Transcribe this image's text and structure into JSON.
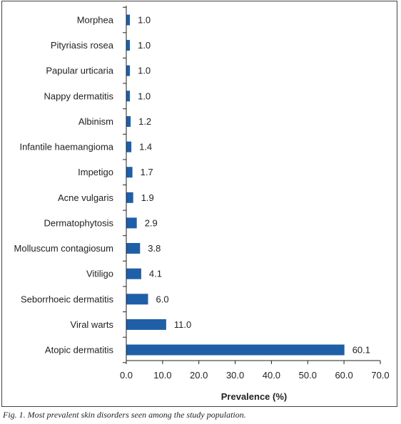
{
  "chart_data": {
    "type": "bar",
    "orientation": "horizontal",
    "categories": [
      "Morphea",
      "Pityriasis rosea",
      "Papular urticaria",
      "Nappy dermatitis",
      "Albinism",
      "Infantile haemangioma",
      "Impetigo",
      "Acne vulgaris",
      "Dermatophytosis",
      "Molluscum contagiosum",
      "Vitiligo",
      "Seborrhoeic dermatitis",
      "Viral warts",
      "Atopic dermatitis"
    ],
    "values": [
      1.0,
      1.0,
      1.0,
      1.0,
      1.2,
      1.4,
      1.7,
      1.9,
      2.9,
      3.8,
      4.1,
      6.0,
      11.0,
      60.1
    ],
    "value_labels": [
      "1.0",
      "1.0",
      "1.0",
      "1.0",
      "1.2",
      "1.4",
      "1.7",
      "1.9",
      "2.9",
      "3.8",
      "4.1",
      "6.0",
      "11.0",
      "60.1"
    ],
    "xlabel": "Prevalence (%)",
    "ylabel": "",
    "xlim": [
      0,
      70
    ],
    "xticks": [
      "0.0",
      "10.0",
      "20.0",
      "30.0",
      "40.0",
      "50.0",
      "60.0",
      "70.0"
    ],
    "grid": false,
    "legend": "none",
    "bar_color": "#1f5fa8"
  },
  "caption": "Fig. 1. Most prevalent skin disorders seen among the study population."
}
